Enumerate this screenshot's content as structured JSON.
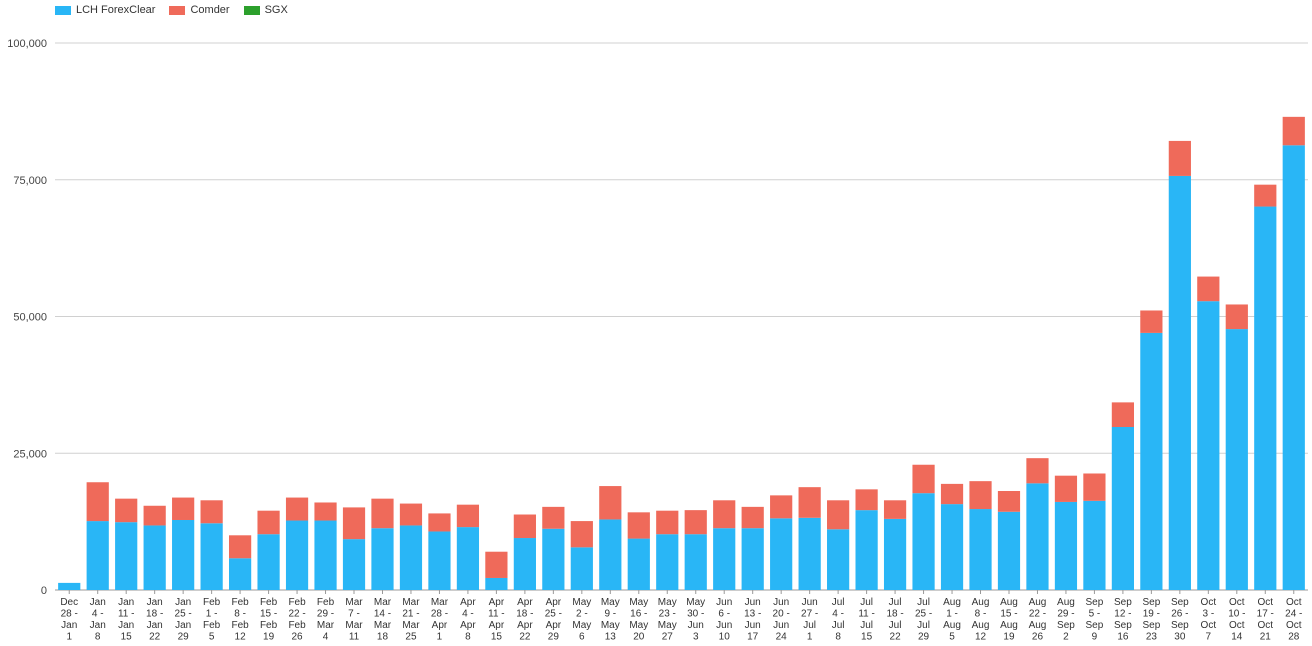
{
  "chart_data": {
    "type": "bar",
    "stacked": true,
    "title": "",
    "xlabel": "",
    "ylabel": "",
    "ylim": [
      0,
      100000
    ],
    "yticks": [
      0,
      25000,
      50000,
      75000,
      100000
    ],
    "ytick_labels": [
      "0",
      "25,000",
      "50,000",
      "75,000",
      "100,000"
    ],
    "grid": true,
    "legend_position": "top-left",
    "categories": [
      [
        "Dec",
        "28 -",
        "Jan",
        "1"
      ],
      [
        "Jan",
        "4 -",
        "Jan",
        "8"
      ],
      [
        "Jan",
        "11 -",
        "Jan",
        "15"
      ],
      [
        "Jan",
        "18 -",
        "Jan",
        "22"
      ],
      [
        "Jan",
        "25 -",
        "Jan",
        "29"
      ],
      [
        "Feb",
        "1 -",
        "Feb",
        "5"
      ],
      [
        "Feb",
        "8 -",
        "Feb",
        "12"
      ],
      [
        "Feb",
        "15 -",
        "Feb",
        "19"
      ],
      [
        "Feb",
        "22 -",
        "Feb",
        "26"
      ],
      [
        "Feb",
        "29 -",
        "Mar",
        "4"
      ],
      [
        "Mar",
        "7 -",
        "Mar",
        "11"
      ],
      [
        "Mar",
        "14 -",
        "Mar",
        "18"
      ],
      [
        "Mar",
        "21 -",
        "Mar",
        "25"
      ],
      [
        "Mar",
        "28 -",
        "Apr",
        "1"
      ],
      [
        "Apr",
        "4 -",
        "Apr",
        "8"
      ],
      [
        "Apr",
        "11 -",
        "Apr",
        "15"
      ],
      [
        "Apr",
        "18 -",
        "Apr",
        "22"
      ],
      [
        "Apr",
        "25 -",
        "Apr",
        "29"
      ],
      [
        "May",
        "2 -",
        "May",
        "6"
      ],
      [
        "May",
        "9 -",
        "May",
        "13"
      ],
      [
        "May",
        "16 -",
        "May",
        "20"
      ],
      [
        "May",
        "23 -",
        "May",
        "27"
      ],
      [
        "May",
        "30 -",
        "Jun",
        "3"
      ],
      [
        "Jun",
        "6 -",
        "Jun",
        "10"
      ],
      [
        "Jun",
        "13 -",
        "Jun",
        "17"
      ],
      [
        "Jun",
        "20 -",
        "Jun",
        "24"
      ],
      [
        "Jun",
        "27 -",
        "Jul",
        "1"
      ],
      [
        "Jul",
        "4 -",
        "Jul",
        "8"
      ],
      [
        "Jul",
        "11 -",
        "Jul",
        "15"
      ],
      [
        "Jul",
        "18 -",
        "Jul",
        "22"
      ],
      [
        "Jul",
        "25 -",
        "Jul",
        "29"
      ],
      [
        "Aug",
        "1 -",
        "Aug",
        "5"
      ],
      [
        "Aug",
        "8 -",
        "Aug",
        "12"
      ],
      [
        "Aug",
        "15 -",
        "Aug",
        "19"
      ],
      [
        "Aug",
        "22 -",
        "Aug",
        "26"
      ],
      [
        "Aug",
        "29 -",
        "Sep",
        "2"
      ],
      [
        "Sep",
        "5 -",
        "Sep",
        "9"
      ],
      [
        "Sep",
        "12 -",
        "Sep",
        "16"
      ],
      [
        "Sep",
        "19 -",
        "Sep",
        "23"
      ],
      [
        "Sep",
        "26 -",
        "Sep",
        "30"
      ],
      [
        "Oct",
        "3 -",
        "Oct",
        "7"
      ],
      [
        "Oct",
        "10 -",
        "Oct",
        "14"
      ],
      [
        "Oct",
        "17 -",
        "Oct",
        "21"
      ],
      [
        "Oct",
        "24 -",
        "Oct",
        "28"
      ]
    ],
    "series": [
      {
        "name": "LCH ForexClear",
        "color": "#29b6f6",
        "values": [
          1300,
          12600,
          12400,
          11800,
          12800,
          12200,
          5800,
          10200,
          12700,
          12700,
          9300,
          11300,
          11800,
          10700,
          11500,
          2200,
          9500,
          11200,
          7800,
          12900,
          9400,
          10200,
          10200,
          11300,
          11300,
          13100,
          13200,
          11100,
          14600,
          13000,
          17700,
          15700,
          14800,
          14300,
          19500,
          16100,
          16300,
          29800,
          47000,
          75700,
          52800,
          47700,
          70100,
          81300
        ]
      },
      {
        "name": "Comder",
        "color": "#ef6a5a",
        "values": [
          0,
          7100,
          4300,
          3600,
          4100,
          4200,
          4200,
          4300,
          4200,
          3300,
          5800,
          5400,
          4000,
          3300,
          4100,
          4800,
          4300,
          4000,
          4800,
          6100,
          4800,
          4300,
          4400,
          5100,
          3900,
          4200,
          5600,
          5300,
          3800,
          3400,
          5200,
          3700,
          5100,
          3800,
          4600,
          4800,
          5000,
          4500,
          4100,
          6400,
          4500,
          4500,
          4000,
          5200
        ]
      },
      {
        "name": "SGX",
        "color": "#2ca02c",
        "values": [
          0,
          0,
          0,
          0,
          0,
          0,
          0,
          0,
          0,
          0,
          0,
          0,
          0,
          0,
          0,
          0,
          0,
          0,
          0,
          0,
          0,
          0,
          0,
          0,
          0,
          0,
          0,
          0,
          0,
          0,
          0,
          0,
          0,
          0,
          0,
          0,
          0,
          0,
          0,
          0,
          0,
          0,
          0,
          0
        ]
      }
    ]
  }
}
